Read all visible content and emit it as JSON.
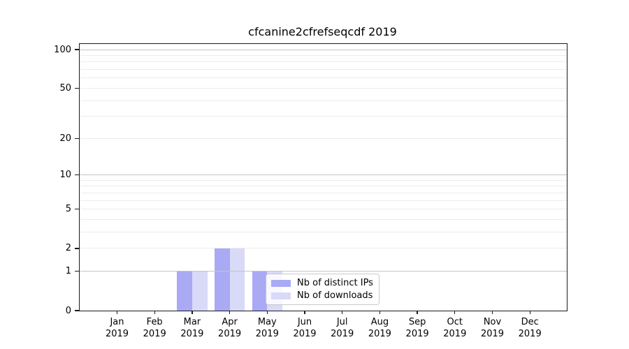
{
  "chart_data": {
    "type": "bar",
    "title": "cfcanine2cfrefseqcdf 2019",
    "categories": [
      {
        "month": "Jan",
        "year": "2019"
      },
      {
        "month": "Feb",
        "year": "2019"
      },
      {
        "month": "Mar",
        "year": "2019"
      },
      {
        "month": "Apr",
        "year": "2019"
      },
      {
        "month": "May",
        "year": "2019"
      },
      {
        "month": "Jun",
        "year": "2019"
      },
      {
        "month": "Jul",
        "year": "2019"
      },
      {
        "month": "Aug",
        "year": "2019"
      },
      {
        "month": "Sep",
        "year": "2019"
      },
      {
        "month": "Oct",
        "year": "2019"
      },
      {
        "month": "Nov",
        "year": "2019"
      },
      {
        "month": "Dec",
        "year": "2019"
      }
    ],
    "series": [
      {
        "name": "Nb of distinct IPs",
        "color": "#a9a9f4",
        "values": [
          0,
          0,
          1,
          2,
          1,
          0,
          0,
          0,
          0,
          0,
          0,
          0
        ]
      },
      {
        "name": "Nb of downloads",
        "color": "#d9d9f8",
        "values": [
          0,
          0,
          1,
          2,
          1,
          0,
          0,
          0,
          0,
          0,
          0,
          0
        ]
      }
    ],
    "yscale": "log1p",
    "ylim": [
      0,
      110
    ],
    "ytick_values": [
      0,
      1,
      2,
      5,
      10,
      20,
      50,
      100
    ],
    "ytick_emphasized": [
      1,
      10,
      100
    ],
    "yminor_values": [
      3,
      4,
      6,
      7,
      8,
      9,
      30,
      40,
      60,
      70,
      80,
      90
    ],
    "grid": "on",
    "legend_position": "inside lower right",
    "colors": {
      "grid_major": "#c4c4c4",
      "grid_minor": "#ececec",
      "axis": "#1a1a1a",
      "background": "#ffffff"
    }
  }
}
